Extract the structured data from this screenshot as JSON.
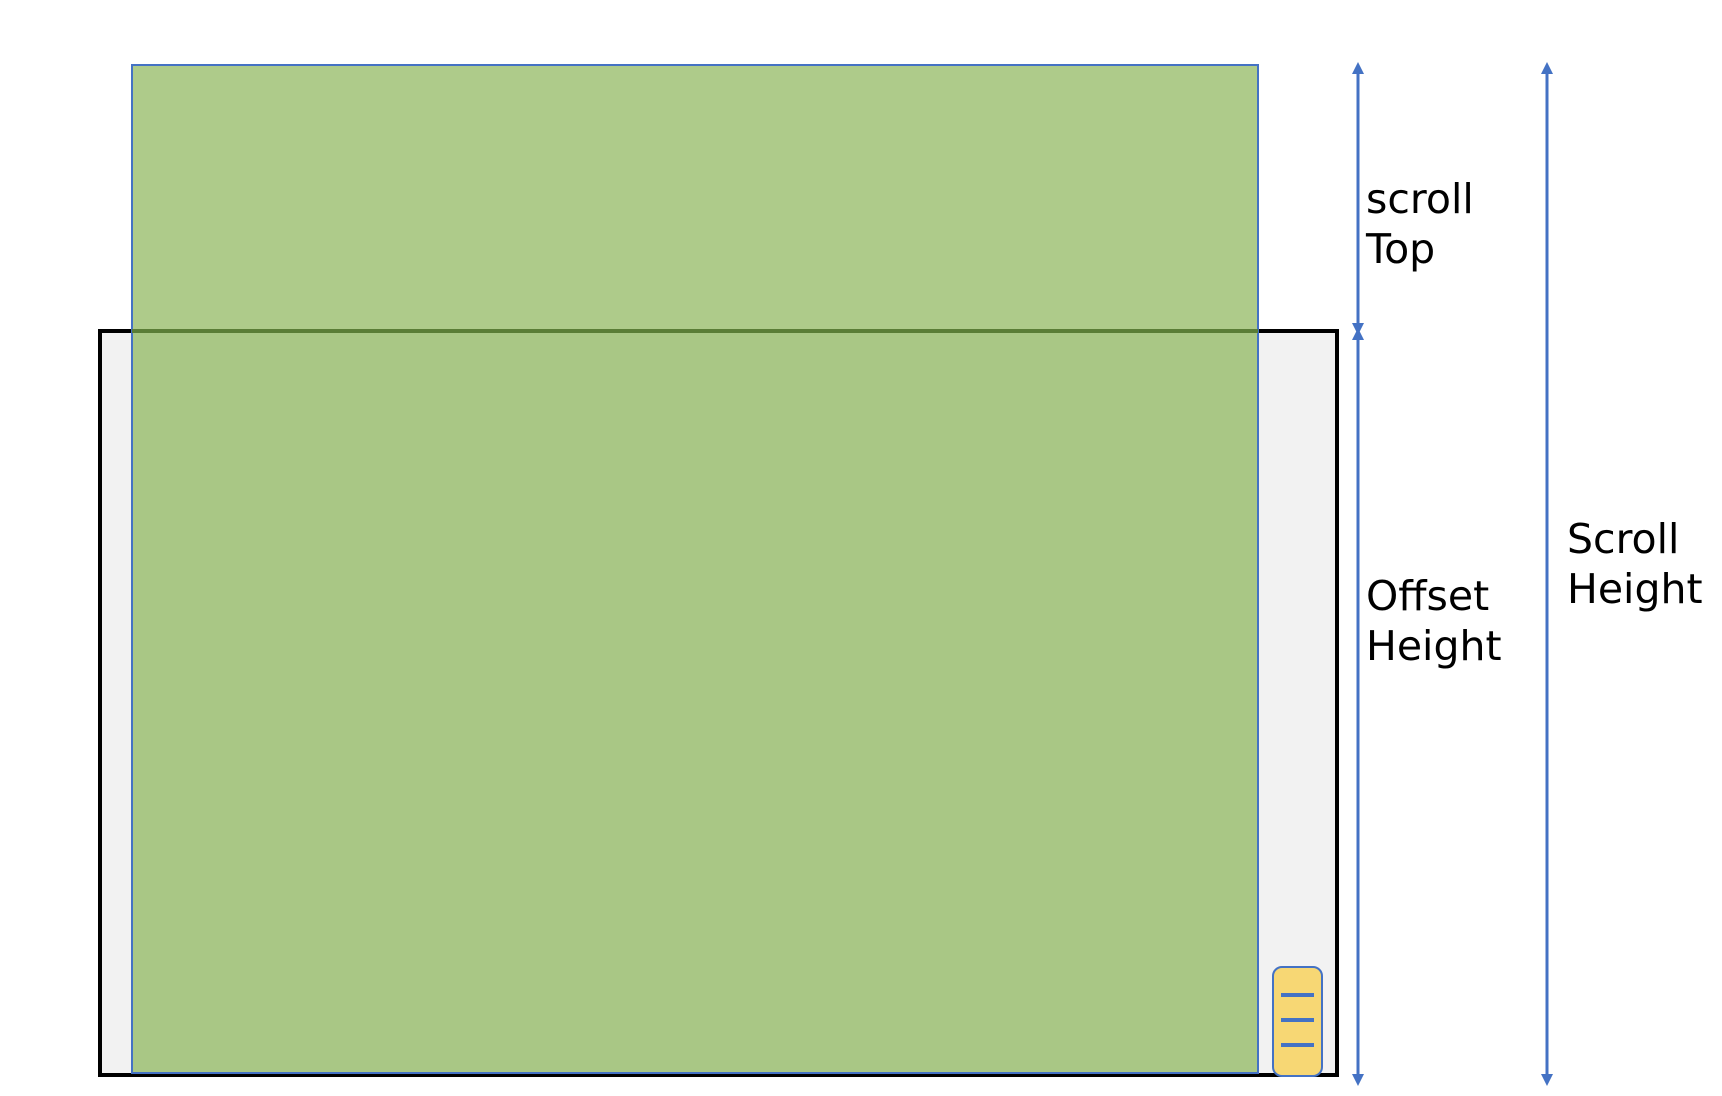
{
  "labels": {
    "scroll_top": [
      "scroll",
      "Top"
    ],
    "offset_height": [
      "Offset",
      "Height"
    ],
    "scroll_height": [
      "Scroll",
      "Height"
    ]
  },
  "colors": {
    "content": "#a9c785",
    "content_above_viewport": "#aecb8a",
    "content_border": "#4472c4",
    "viewport_fill": "#f2f2f2",
    "viewport_border": "#000000",
    "fold_line": "#5a7d36",
    "arrow": "#4472c4",
    "scroll_thumb": "#f7d774",
    "scroll_thumb_border": "#4472c4"
  },
  "icons": {
    "scroll_thumb": "scrollbar-thumb-grip-icon"
  }
}
